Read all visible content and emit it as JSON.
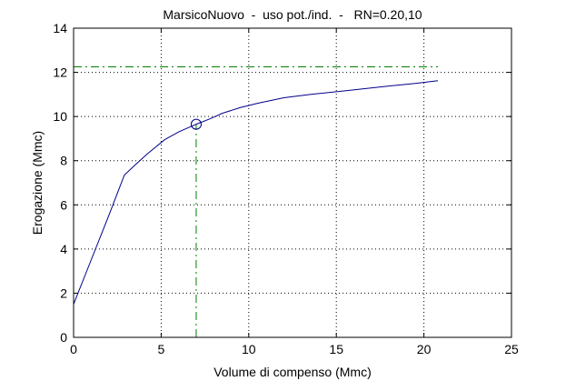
{
  "chart_data": {
    "type": "line",
    "title": "MarsicoNuovo  -  uso pot./ind.  -   RN=0.20,10",
    "xlabel": "Volume di compenso (Mmc)",
    "ylabel": "Erogazione (Mmc)",
    "xlim": [
      0,
      25
    ],
    "ylim": [
      0,
      14
    ],
    "xticks": [
      0,
      5,
      10,
      15,
      20,
      25
    ],
    "yticks": [
      0,
      2,
      4,
      6,
      8,
      10,
      12,
      14
    ],
    "grid": true,
    "series": [
      {
        "color": "#00008b",
        "x": [
          0,
          1,
          2,
          2.9,
          3.5,
          4.2,
          5.2,
          6.0,
          7.0,
          7.8,
          8.5,
          9.5,
          10.5,
          12.0,
          13.5,
          15.0,
          16.5,
          18.0,
          19.5,
          20.8
        ],
        "y": [
          1.5,
          3.5,
          5.5,
          7.35,
          7.8,
          8.3,
          8.95,
          9.3,
          9.65,
          9.9,
          10.15,
          10.4,
          10.6,
          10.85,
          11.0,
          11.12,
          11.25,
          11.38,
          11.5,
          11.62
        ]
      }
    ],
    "reference_lines": [
      {
        "orientation": "horizontal",
        "value": 12.25,
        "from": 0,
        "to": 20.8,
        "color": "#008000",
        "dash": "dash-dot"
      },
      {
        "orientation": "vertical",
        "value": 7.0,
        "from": 0,
        "to": 9.65,
        "color": "#008000",
        "dash": "dash-dot"
      }
    ],
    "marker": {
      "x": 7.0,
      "y": 9.65,
      "shape": "circle",
      "color": "#00008b"
    }
  }
}
